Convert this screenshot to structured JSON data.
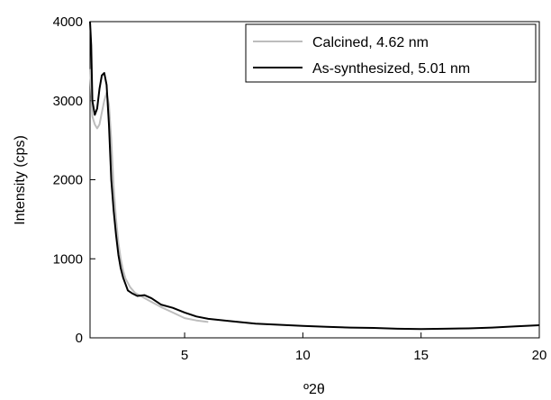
{
  "chart_data": {
    "type": "line",
    "xlabel": "º2θ",
    "ylabel": "Intensity (cps)",
    "xlim": [
      1,
      20
    ],
    "ylim": [
      0,
      4000
    ],
    "xticks": [
      5,
      10,
      15,
      20
    ],
    "yticks": [
      0,
      1000,
      2000,
      3000,
      4000
    ],
    "grid": false,
    "legend_position": "top-right",
    "series": [
      {
        "name": "Calcined, 4.62 nm",
        "color": "#bdbdbd",
        "x": [
          1.0,
          1.1,
          1.2,
          1.3,
          1.4,
          1.5,
          1.6,
          1.7,
          1.8,
          1.9,
          2.0,
          2.1,
          2.2,
          2.3,
          2.4,
          2.5,
          2.7,
          2.9,
          3.2,
          3.5,
          4.0,
          4.5,
          5.0,
          5.5,
          6.0
        ],
        "y": [
          3400,
          2800,
          2700,
          2650,
          2700,
          2850,
          3000,
          3100,
          2950,
          2500,
          1900,
          1500,
          1200,
          1000,
          850,
          750,
          640,
          570,
          520,
          470,
          390,
          320,
          250,
          220,
          200
        ]
      },
      {
        "name": "As-synthesized, 5.01 nm",
        "color": "#000000",
        "x": [
          1.0,
          1.05,
          1.1,
          1.2,
          1.3,
          1.4,
          1.5,
          1.6,
          1.7,
          1.8,
          1.9,
          2.0,
          2.1,
          2.2,
          2.3,
          2.4,
          2.5,
          2.6,
          2.8,
          3.0,
          3.3,
          3.6,
          4.0,
          4.5,
          5.0,
          5.5,
          6.0,
          7.0,
          8.0,
          9.0,
          10.0,
          11.0,
          12.0,
          13.0,
          14.0,
          15.0,
          16.0,
          17.0,
          18.0,
          19.0,
          20.0
        ],
        "y": [
          4000,
          3700,
          3000,
          2820,
          2900,
          3150,
          3320,
          3350,
          3200,
          2700,
          2000,
          1600,
          1300,
          1050,
          880,
          760,
          680,
          600,
          560,
          530,
          540,
          500,
          420,
          380,
          320,
          270,
          240,
          210,
          180,
          165,
          150,
          140,
          130,
          125,
          115,
          110,
          115,
          120,
          130,
          145,
          160
        ]
      }
    ]
  }
}
